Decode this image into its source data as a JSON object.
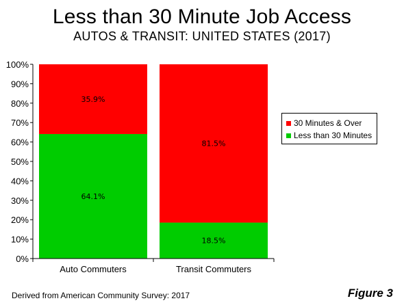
{
  "chart_data": {
    "type": "bar",
    "stacked": true,
    "title": "Less than 30 Minute Job Access",
    "subtitle": "AUTOS & TRANSIT: UNITED STATES (2017)",
    "categories": [
      "Auto Commuters",
      "Transit Commuters"
    ],
    "series": [
      {
        "name": "Less than 30 Minutes",
        "values": [
          64.1,
          18.5
        ],
        "labels": [
          "64.1%",
          "18.5%"
        ],
        "color": "#00cc00"
      },
      {
        "name": "30 Minutes & Over",
        "values": [
          35.9,
          81.5
        ],
        "labels": [
          "35.9%",
          "81.5%"
        ],
        "color": "#ff0000"
      }
    ],
    "legend_order": [
      "30 Minutes & Over",
      "Less than 30 Minutes"
    ],
    "ylim": [
      0,
      100
    ],
    "yticks": [
      "0%",
      "10%",
      "20%",
      "30%",
      "40%",
      "50%",
      "60%",
      "70%",
      "80%",
      "90%",
      "100%"
    ],
    "legend_position": "right",
    "grid": false
  },
  "footer": {
    "source": "Derived from American Community Survey: 2017",
    "figure_label": "Figure 3"
  }
}
